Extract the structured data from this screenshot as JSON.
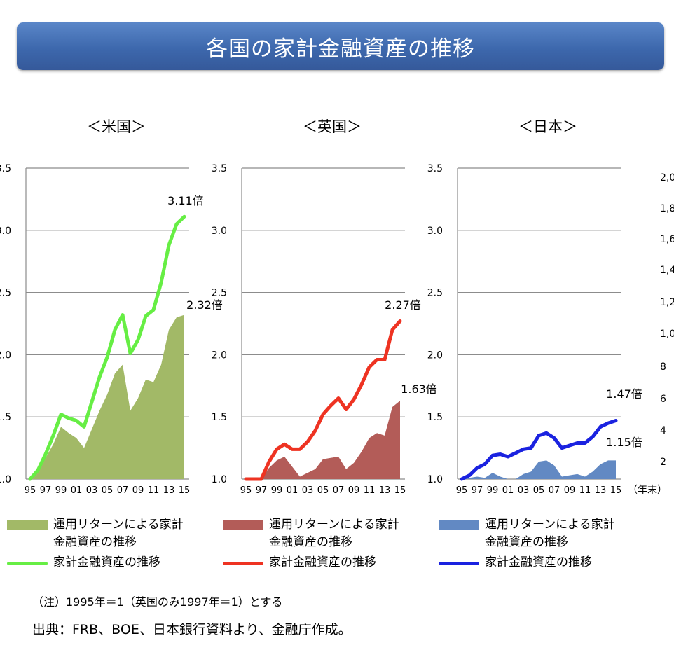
{
  "page_title": "各国の家計金融資産の推移",
  "unit_label": "（年末）",
  "note": "（注）1995年＝1（英国のみ1997年＝1）とする",
  "source": "出典：FRB、BOE、日本銀行資料より、金融庁作成。",
  "legend_labels": {
    "area": "運用リターンによる家計\n金融資産の推移",
    "line": "家計金融資産の推移"
  },
  "right_axis_partial_labels": [
    "2,0",
    "1,8",
    "1,6",
    "1,4",
    "1,2",
    "1,0",
    "8",
    "6",
    "4",
    "2"
  ],
  "chart_data": [
    {
      "type": "area",
      "title": "＜米国＞",
      "categories": [
        "95",
        "96",
        "97",
        "98",
        "99",
        "00",
        "01",
        "02",
        "03",
        "04",
        "05",
        "06",
        "07",
        "08",
        "09",
        "10",
        "11",
        "12",
        "13",
        "14",
        "15"
      ],
      "x_tick_labels": [
        "95",
        "97",
        "99",
        "01",
        "03",
        "05",
        "07",
        "09",
        "11",
        "13",
        "15"
      ],
      "y_tick_labels": [
        "1.0",
        "1.5",
        "2.0",
        "2.5",
        "3.0",
        "3.5"
      ],
      "ylim": [
        1.0,
        3.5
      ],
      "grid": true,
      "series": [
        {
          "name": "運用リターンによる家計金融資産の推移",
          "kind": "area",
          "color": "#a2b967",
          "values": [
            1.0,
            1.06,
            1.17,
            1.28,
            1.42,
            1.37,
            1.33,
            1.25,
            1.4,
            1.55,
            1.68,
            1.85,
            1.92,
            1.55,
            1.65,
            1.8,
            1.78,
            1.92,
            2.2,
            2.3,
            2.32
          ]
        },
        {
          "name": "家計金融資産の推移",
          "kind": "line",
          "color": "#66ee44",
          "values": [
            1.0,
            1.07,
            1.2,
            1.35,
            1.52,
            1.49,
            1.47,
            1.42,
            1.62,
            1.82,
            1.98,
            2.2,
            2.32,
            2.01,
            2.12,
            2.31,
            2.36,
            2.58,
            2.88,
            3.05,
            3.11
          ]
        }
      ],
      "annotations": [
        "3.11倍",
        "2.32倍"
      ]
    },
    {
      "type": "area",
      "title": "＜英国＞",
      "categories": [
        "95",
        "96",
        "97",
        "98",
        "99",
        "00",
        "01",
        "02",
        "03",
        "04",
        "05",
        "06",
        "07",
        "08",
        "09",
        "10",
        "11",
        "12",
        "13",
        "14",
        "15"
      ],
      "x_tick_labels": [
        "95",
        "97",
        "99",
        "01",
        "03",
        "05",
        "07",
        "09",
        "11",
        "13",
        "15"
      ],
      "y_tick_labels": [
        "1.0",
        "1.5",
        "2.0",
        "2.5",
        "3.0",
        "3.5"
      ],
      "ylim": [
        1.0,
        3.5
      ],
      "grid": true,
      "series": [
        {
          "name": "運用リターンによる家計金融資産の推移",
          "kind": "area",
          "color": "#b35c58",
          "values": [
            1.0,
            1.0,
            1.0,
            1.09,
            1.15,
            1.18,
            1.1,
            1.02,
            1.05,
            1.08,
            1.16,
            1.17,
            1.18,
            1.08,
            1.13,
            1.22,
            1.33,
            1.37,
            1.35,
            1.58,
            1.63
          ]
        },
        {
          "name": "家計金融資産の推移",
          "kind": "line",
          "color": "#ee3322",
          "values": [
            1.0,
            1.0,
            1.0,
            1.14,
            1.24,
            1.28,
            1.24,
            1.24,
            1.3,
            1.39,
            1.52,
            1.59,
            1.65,
            1.56,
            1.64,
            1.76,
            1.9,
            1.96,
            1.96,
            2.2,
            2.27
          ]
        }
      ],
      "annotations": [
        "2.27倍",
        "1.63倍"
      ]
    },
    {
      "type": "area",
      "title": "＜日本＞",
      "categories": [
        "95",
        "96",
        "97",
        "98",
        "99",
        "00",
        "01",
        "02",
        "03",
        "04",
        "05",
        "06",
        "07",
        "08",
        "09",
        "10",
        "11",
        "12",
        "13",
        "14",
        "15"
      ],
      "x_tick_labels": [
        "95",
        "97",
        "99",
        "01",
        "03",
        "05",
        "07",
        "09",
        "11",
        "13",
        "15"
      ],
      "y_tick_labels": [
        "1.0",
        "1.5",
        "2.0",
        "2.5",
        "3.0",
        "3.5"
      ],
      "ylim": [
        1.0,
        3.5
      ],
      "grid": true,
      "series": [
        {
          "name": "運用リターンによる家計金融資産の推移",
          "kind": "area",
          "color": "#6289c3",
          "values": [
            1.0,
            1.01,
            1.02,
            1.01,
            1.05,
            1.02,
            1.0,
            1.0,
            1.04,
            1.06,
            1.14,
            1.15,
            1.11,
            1.02,
            1.03,
            1.04,
            1.02,
            1.06,
            1.12,
            1.15,
            1.15
          ]
        },
        {
          "name": "家計金融資産の推移",
          "kind": "line",
          "color": "#1a22e0",
          "values": [
            1.0,
            1.03,
            1.09,
            1.12,
            1.19,
            1.2,
            1.18,
            1.21,
            1.24,
            1.25,
            1.35,
            1.37,
            1.33,
            1.25,
            1.27,
            1.29,
            1.29,
            1.34,
            1.42,
            1.45,
            1.47
          ]
        }
      ],
      "annotations": [
        "1.47倍",
        "1.15倍"
      ]
    }
  ]
}
